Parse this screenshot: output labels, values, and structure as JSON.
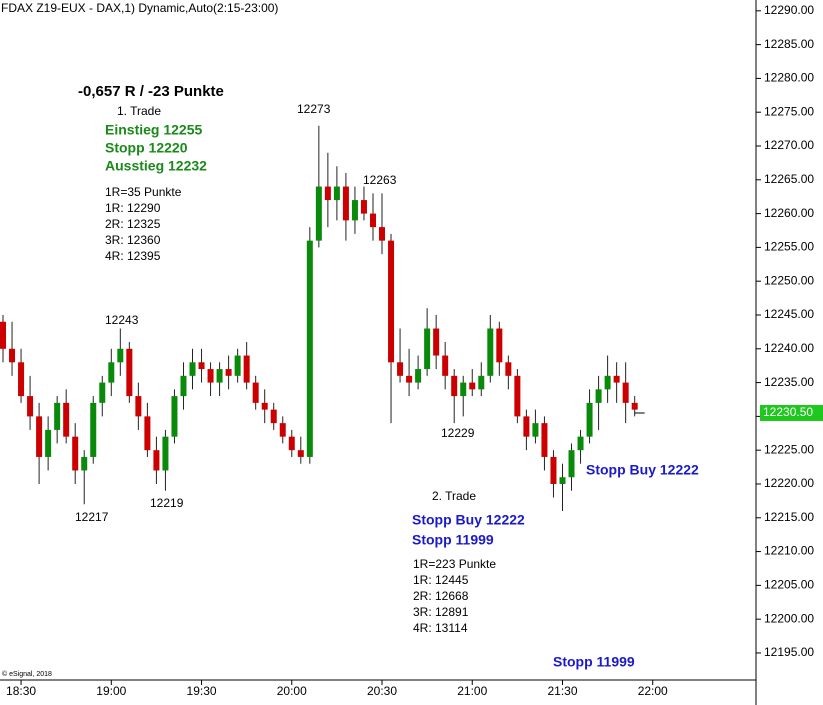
{
  "chart_data": {
    "type": "candlestick",
    "title": "FDAX Z19-EUX - DAX,1) Dynamic,Auto(2:15-23:00)",
    "credit": "© eSignal, 2018",
    "x": [
      "18:24",
      "18:27",
      "18:30",
      "18:33",
      "18:36",
      "18:39",
      "18:42",
      "18:45",
      "18:48",
      "18:51",
      "18:54",
      "18:57",
      "19:00",
      "19:03",
      "19:06",
      "19:09",
      "19:12",
      "19:15",
      "19:18",
      "19:21",
      "19:24",
      "19:27",
      "19:30",
      "19:33",
      "19:36",
      "19:39",
      "19:42",
      "19:45",
      "19:48",
      "19:51",
      "19:54",
      "19:57",
      "20:00",
      "20:03",
      "20:06",
      "20:09",
      "20:12",
      "20:15",
      "20:18",
      "20:21",
      "20:24",
      "20:27",
      "20:30",
      "20:33",
      "20:36",
      "20:39",
      "20:42",
      "20:45",
      "20:48",
      "20:51",
      "20:54",
      "20:57",
      "21:00",
      "21:03",
      "21:06",
      "21:09",
      "21:12",
      "21:15",
      "21:18",
      "21:21",
      "21:24",
      "21:27",
      "21:30",
      "21:33",
      "21:36",
      "21:39",
      "21:42",
      "21:45",
      "21:48",
      "21:51",
      "21:54"
    ],
    "open": [
      12244,
      12240,
      12238,
      12233,
      12230,
      12224,
      12228,
      12232,
      12227,
      12222,
      12224,
      12232,
      12235,
      12238,
      12240,
      12233,
      12230,
      12225,
      12222,
      12227,
      12233,
      12236,
      12238,
      12237,
      12235,
      12237,
      12236,
      12239,
      12235,
      12232,
      12231,
      12229,
      12227,
      12225,
      12224,
      12256,
      12264,
      12262,
      12264,
      12259,
      12262,
      12260,
      12258,
      12256,
      12238,
      12236,
      12235,
      12237,
      12243,
      12239,
      12236,
      12233,
      12235,
      12234,
      12236,
      12243,
      12238,
      12236,
      12230,
      12227,
      12229,
      12224,
      12220,
      12221,
      12225,
      12227,
      12232,
      12234,
      12236,
      12235,
      12232
    ],
    "high": [
      12245,
      12244,
      12240,
      12236,
      12232,
      12230,
      12233,
      12234,
      12229,
      12225,
      12233,
      12236,
      12240,
      12243,
      12241,
      12235,
      12232,
      12227,
      12228,
      12234,
      12238,
      12240,
      12240,
      12238,
      12238,
      12239,
      12240,
      12241,
      12236,
      12234,
      12232,
      12230,
      12228,
      12227,
      12258,
      12273,
      12269,
      12267,
      12266,
      12264,
      12264,
      12263,
      12263,
      12257,
      12243,
      12240,
      12239,
      12246,
      12245,
      12241,
      12237,
      12236,
      12237,
      12238,
      12245,
      12244,
      12239,
      12237,
      12231,
      12231,
      12230,
      12225,
      12223,
      12226,
      12228,
      12234,
      12236,
      12239,
      12238,
      12238,
      12233
    ],
    "low": [
      12238,
      12236,
      12232,
      12228,
      12220,
      12222,
      12226,
      12226,
      12220,
      12217,
      12223,
      12230,
      12233,
      12236,
      12232,
      12228,
      12224,
      12220,
      12219,
      12226,
      12231,
      12234,
      12235,
      12233,
      12233,
      12234,
      12235,
      12234,
      12231,
      12229,
      12228,
      12226,
      12224,
      12223,
      12223,
      12255,
      12258,
      12259,
      12256,
      12257,
      12259,
      12256,
      12254,
      12229,
      12235,
      12233,
      12234,
      12236,
      12237,
      12234,
      12229,
      12230,
      12233,
      12233,
      12235,
      12236,
      12234,
      12229,
      12225,
      12226,
      12222,
      12218,
      12216,
      12219,
      12223,
      12226,
      12228,
      12232,
      12232,
      12229,
      12230
    ],
    "close": [
      12240,
      12238,
      12233,
      12230,
      12224,
      12228,
      12232,
      12227,
      12222,
      12224,
      12232,
      12235,
      12238,
      12240,
      12233,
      12230,
      12225,
      12222,
      12227,
      12233,
      12236,
      12238,
      12237,
      12235,
      12237,
      12236,
      12239,
      12235,
      12232,
      12231,
      12229,
      12227,
      12225,
      12224,
      12256,
      12264,
      12262,
      12264,
      12259,
      12262,
      12260,
      12258,
      12256,
      12238,
      12236,
      12235,
      12237,
      12243,
      12239,
      12236,
      12233,
      12235,
      12234,
      12236,
      12243,
      12238,
      12236,
      12230,
      12227,
      12229,
      12224,
      12220,
      12221,
      12225,
      12227,
      12232,
      12234,
      12236,
      12235,
      12232,
      12231
    ],
    "up_color": "#0a8a0a",
    "down_color": "#cc0000",
    "xlim": [
      "18:23",
      "22:34"
    ],
    "xticks": [
      "18:30",
      "19:00",
      "19:30",
      "20:00",
      "20:30",
      "21:00",
      "21:30",
      "22:00"
    ],
    "ylim": [
      12191,
      12291.6
    ],
    "yticks": [
      {
        "value": 12195,
        "label": "12195.00"
      },
      {
        "value": 12200,
        "label": "12200.00"
      },
      {
        "value": 12205,
        "label": "12205.00"
      },
      {
        "value": 12210,
        "label": "12210.00"
      },
      {
        "value": 12215,
        "label": "12215.00"
      },
      {
        "value": 12220,
        "label": "12220.00"
      },
      {
        "value": 12225,
        "label": "12225.00"
      },
      {
        "value": 12230,
        "label": "12230.00"
      },
      {
        "value": 12235,
        "label": "12235.00"
      },
      {
        "value": 12240,
        "label": "12240.00"
      },
      {
        "value": 12245,
        "label": "12245.00"
      },
      {
        "value": 12250,
        "label": "12250.00"
      },
      {
        "value": 12255,
        "label": "12255.00"
      },
      {
        "value": 12260,
        "label": "12260.00"
      },
      {
        "value": 12265,
        "label": "12265.00"
      },
      {
        "value": 12270,
        "label": "12270.00"
      },
      {
        "value": 12275,
        "label": "12275.00"
      },
      {
        "value": 12280,
        "label": "12280.00"
      },
      {
        "value": 12285,
        "label": "12285.00"
      },
      {
        "value": 12290,
        "label": "12290.00"
      }
    ],
    "last_price": {
      "value": 12230.5,
      "label": "12230.50"
    },
    "annotations": [
      {
        "text": "-0,657 R / -23 Punkte",
        "color": "#000000"
      },
      {
        "text": "1. Trade",
        "color": "#000000"
      },
      {
        "text": "Einstieg 12255",
        "color": "#1a8a1a"
      },
      {
        "text": "Stopp 12220",
        "color": "#1a8a1a"
      },
      {
        "text": "Ausstieg 12232",
        "color": "#1a8a1a"
      },
      {
        "text": "1R=35 Punkte",
        "color": "#000000"
      },
      {
        "text": "1R: 12290",
        "color": "#000000"
      },
      {
        "text": "2R: 12325",
        "color": "#000000"
      },
      {
        "text": "3R: 12360",
        "color": "#000000"
      },
      {
        "text": "4R: 12395",
        "color": "#000000"
      },
      {
        "text": "12273",
        "color": "#000000"
      },
      {
        "text": "12263",
        "color": "#000000"
      },
      {
        "text": "12243",
        "color": "#000000"
      },
      {
        "text": "12217",
        "color": "#000000"
      },
      {
        "text": "12219",
        "color": "#000000"
      },
      {
        "text": "12229",
        "color": "#000000"
      },
      {
        "text": "2. Trade",
        "color": "#000000"
      },
      {
        "text": "Stopp Buy 12222",
        "color": "#1a1acc"
      },
      {
        "text": "Stopp 11999",
        "color": "#1a1acc"
      },
      {
        "text": "1R=223 Punkte",
        "color": "#000000"
      },
      {
        "text": "1R: 12445",
        "color": "#000000"
      },
      {
        "text": "2R: 12668",
        "color": "#000000"
      },
      {
        "text": "3R: 12891",
        "color": "#000000"
      },
      {
        "text": "4R: 13114",
        "color": "#000000"
      },
      {
        "text": "Stopp Buy 12222",
        "color": "#1a1acc"
      },
      {
        "text": "Stopp 11999",
        "color": "#1a1acc"
      }
    ]
  }
}
